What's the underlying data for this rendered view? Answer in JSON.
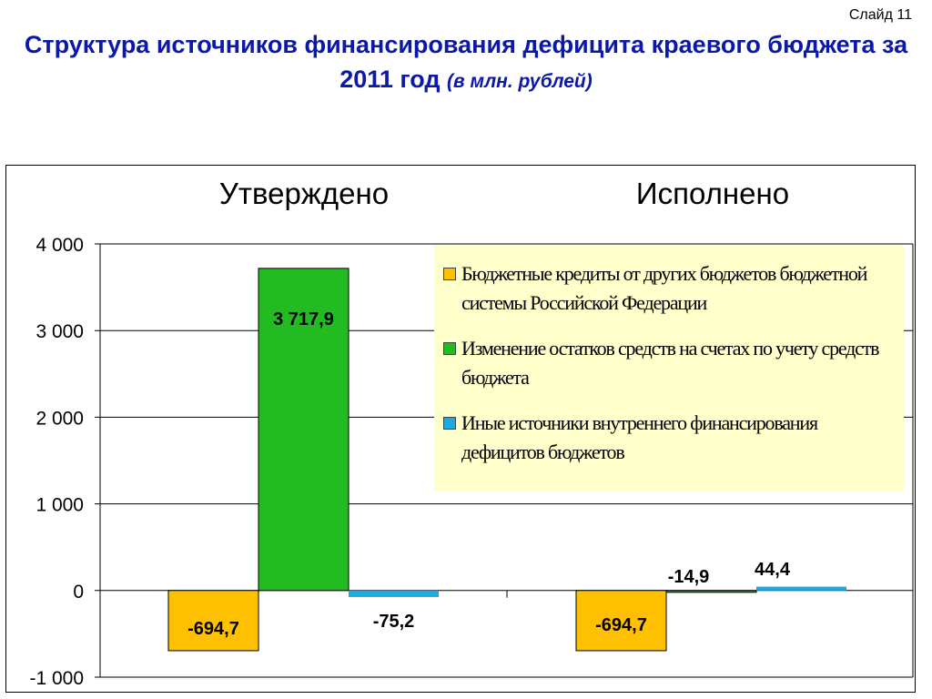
{
  "slide_label": "Слайд 11",
  "title": {
    "main": "Структура источников финансирования дефицита краевого бюджета за 2011 год",
    "unit": "(в млн. рублей)"
  },
  "chart_data": {
    "type": "bar",
    "categories": [
      "Утверждено",
      "Исполнено"
    ],
    "series": [
      {
        "name": "Бюджетные кредиты от других бюджетов бюджетной системы Российской Федерации",
        "values": [
          -694.7,
          -694.7
        ],
        "labels": [
          "-694,7",
          "-694,7"
        ],
        "color": "#ffc000"
      },
      {
        "name": "Изменение остатков средств на счетах по учету средств бюджета",
        "values": [
          3717.9,
          -14.9
        ],
        "labels": [
          "3 717,9",
          "-14,9"
        ],
        "color": "#22bb22"
      },
      {
        "name": "Иные источники внутреннего финансирования дефицитов бюджетов",
        "values": [
          -75.2,
          44.4
        ],
        "labels": [
          "-75,2",
          "44,4"
        ],
        "color": "#1fa9e1"
      }
    ],
    "yticks": [
      "4 000",
      "3 000",
      "2 000",
      "1 000",
      "0",
      "-1 000"
    ],
    "ylim": [
      -1000,
      4000
    ],
    "grid": true,
    "legend_position": "top-right"
  }
}
